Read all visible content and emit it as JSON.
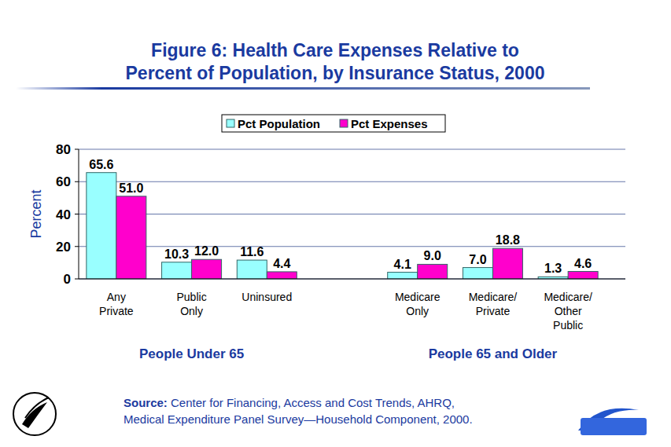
{
  "chart_data": {
    "type": "bar",
    "title": "Figure 6: Health Care Expenses Relative to Percent of Population, by Insurance Status, 2000",
    "y_label": "Percent",
    "categories": [
      "Any Private",
      "Public Only",
      "Uninsured",
      null,
      "Medicare Only",
      "Medicare/ Private",
      "Medicare/ Other Public"
    ],
    "group_labels": [
      "People Under 65",
      "People 65 and Older"
    ],
    "series": [
      {
        "name": "Pct Population",
        "color": "#99ffff",
        "values": [
          65.6,
          10.3,
          11.6,
          null,
          4.1,
          7.0,
          1.3
        ],
        "value_labels": [
          "65.6",
          "10.3",
          "11.6",
          null,
          "4.1",
          "7.0",
          "1.3"
        ]
      },
      {
        "name": "Pct Expenses",
        "color": "#ff00cc",
        "values": [
          51.0,
          12.0,
          4.4,
          null,
          9.0,
          18.8,
          4.6
        ],
        "value_labels": [
          "51.0",
          "12.0",
          "4.4",
          null,
          "9.0",
          "18.8",
          "4.6"
        ]
      }
    ],
    "ylim": [
      0,
      80
    ],
    "yticks": [
      0,
      20,
      40,
      60,
      80
    ],
    "grid": true,
    "legend": "top",
    "data_labels": true,
    "source": "Source: Center for Financing, Access and Cost Trends, AHRQ, Medical Expenditure Panel Survey—Household Component, 2000."
  }
}
